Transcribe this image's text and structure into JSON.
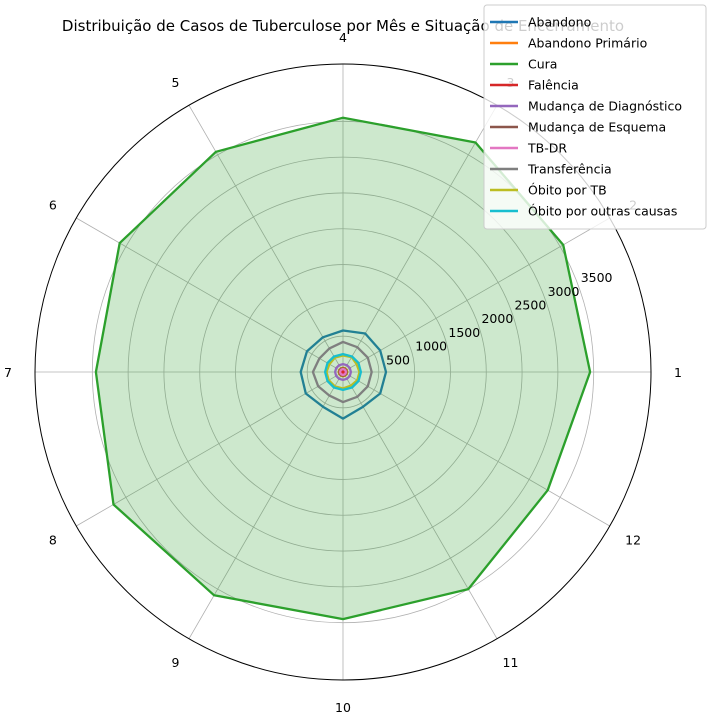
{
  "chart_data": {
    "type": "radar",
    "title": "Distribuição de Casos de Tuberculose por Mês e Situação de Encerramento",
    "categories": [
      "1",
      "2",
      "3",
      "4",
      "5",
      "6",
      "7",
      "8",
      "9",
      "10",
      "11",
      "12"
    ],
    "radial_ticks": [
      "500",
      "1000",
      "1500",
      "2000",
      "2500",
      "3000",
      "3500"
    ],
    "rlim": [
      0,
      4300
    ],
    "grid": true,
    "legend_position": "top-right",
    "series": [
      {
        "name": "Abandono",
        "color": "#1f77b4",
        "values": [
          600,
          600,
          620,
          580,
          560,
          580,
          590,
          600,
          560,
          650,
          560,
          600
        ],
        "fill": false
      },
      {
        "name": "Abandono Primário",
        "color": "#ff7f0e",
        "values": [
          60,
          60,
          60,
          60,
          60,
          60,
          60,
          60,
          60,
          60,
          60,
          60
        ],
        "fill": false
      },
      {
        "name": "Cura",
        "color": "#2ca02c",
        "values": [
          3450,
          3550,
          3700,
          3550,
          3550,
          3600,
          3450,
          3700,
          3600,
          3450,
          3500,
          3300
        ],
        "fill": true
      },
      {
        "name": "Falência",
        "color": "#d62728",
        "values": [
          15,
          15,
          15,
          15,
          15,
          15,
          15,
          15,
          15,
          15,
          15,
          15
        ],
        "fill": false
      },
      {
        "name": "Mudança de Diagnóstico",
        "color": "#9467bd",
        "values": [
          110,
          110,
          110,
          110,
          110,
          110,
          110,
          110,
          110,
          110,
          110,
          110
        ],
        "fill": false
      },
      {
        "name": "Mudança de Esquema",
        "color": "#8c564b",
        "values": [
          50,
          50,
          50,
          50,
          50,
          50,
          50,
          50,
          50,
          50,
          50,
          50
        ],
        "fill": false
      },
      {
        "name": "TB-DR",
        "color": "#e377c2",
        "values": [
          40,
          40,
          40,
          40,
          40,
          40,
          40,
          40,
          40,
          40,
          40,
          40
        ],
        "fill": false
      },
      {
        "name": "Transferência",
        "color": "#7f7f7f",
        "values": [
          400,
          400,
          400,
          420,
          380,
          380,
          420,
          400,
          380,
          420,
          400,
          400
        ],
        "fill": false
      },
      {
        "name": "Óbito por TB",
        "color": "#bcbd22",
        "values": [
          230,
          220,
          240,
          230,
          230,
          220,
          230,
          230,
          230,
          230,
          220,
          230
        ],
        "fill": false
      },
      {
        "name": "Óbito por outras causas",
        "color": "#17becf",
        "values": [
          250,
          250,
          250,
          250,
          250,
          250,
          250,
          250,
          250,
          250,
          250,
          250
        ],
        "fill": false
      }
    ]
  }
}
